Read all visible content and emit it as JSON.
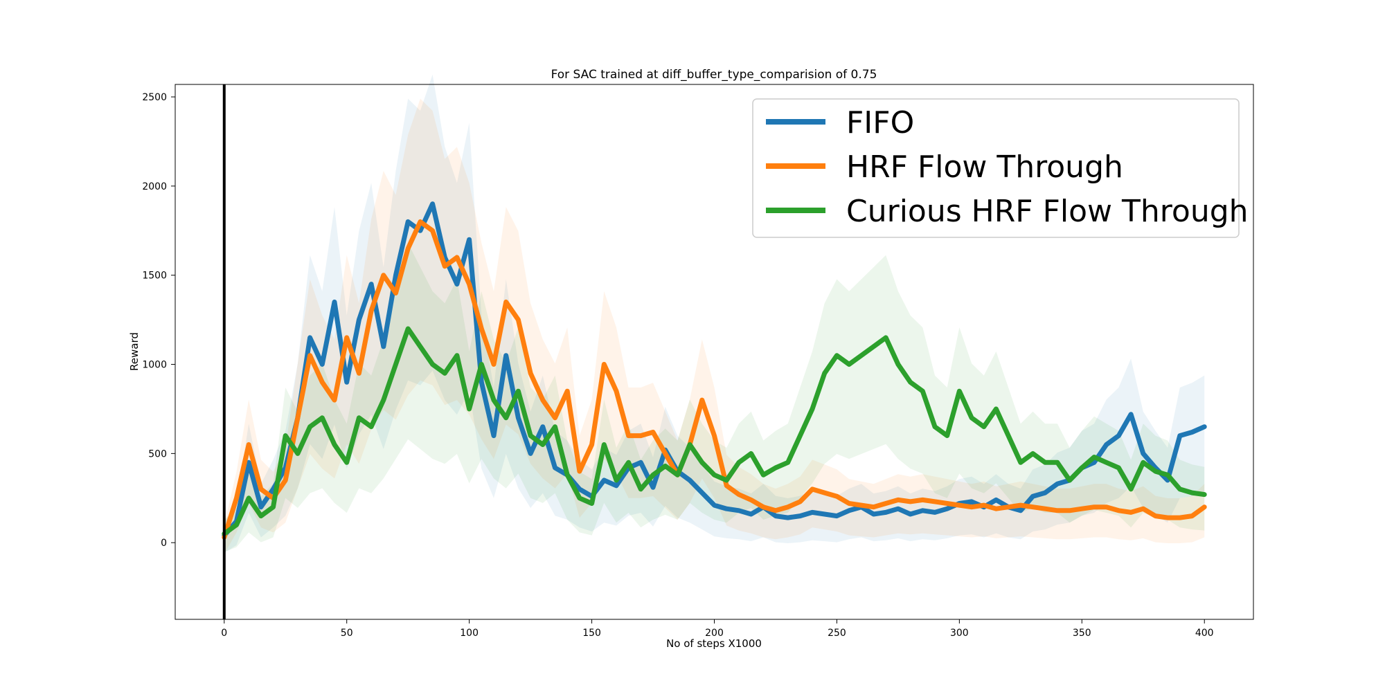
{
  "chart_data": {
    "type": "line",
    "title": "For SAC trained at diff_buffer_type_comparision of 0.75",
    "xlabel": "No of steps X1000",
    "ylabel": "Reward",
    "xlim": [
      -20,
      420
    ],
    "ylim": [
      -430,
      2570
    ],
    "xticks": [
      0,
      50,
      100,
      150,
      200,
      250,
      300,
      350,
      400
    ],
    "yticks": [
      0,
      500,
      1000,
      1500,
      2000,
      2500
    ],
    "vline_x": 0,
    "legend_position": "top-right",
    "grid": false,
    "series": [
      {
        "name": "FIFO",
        "color": "#1f77b4",
        "x": [
          0,
          5,
          10,
          15,
          20,
          25,
          30,
          35,
          40,
          45,
          50,
          55,
          60,
          65,
          70,
          75,
          80,
          85,
          90,
          95,
          100,
          105,
          110,
          115,
          120,
          125,
          130,
          135,
          140,
          145,
          150,
          155,
          160,
          165,
          170,
          175,
          180,
          185,
          190,
          195,
          200,
          205,
          210,
          215,
          220,
          225,
          230,
          235,
          240,
          245,
          250,
          255,
          260,
          265,
          270,
          275,
          280,
          285,
          290,
          295,
          300,
          305,
          310,
          315,
          320,
          325,
          330,
          335,
          340,
          345,
          350,
          355,
          360,
          365,
          370,
          375,
          380,
          385,
          390,
          395,
          400
        ],
        "values": [
          40,
          120,
          450,
          200,
          300,
          420,
          700,
          1150,
          1000,
          1350,
          900,
          1250,
          1450,
          1100,
          1500,
          1800,
          1750,
          1900,
          1600,
          1450,
          1700,
          900,
          600,
          1050,
          700,
          500,
          650,
          420,
          380,
          300,
          260,
          350,
          320,
          420,
          450,
          310,
          520,
          400,
          350,
          280,
          210,
          190,
          180,
          160,
          200,
          150,
          140,
          150,
          170,
          160,
          150,
          180,
          200,
          160,
          170,
          190,
          160,
          180,
          170,
          190,
          220,
          230,
          200,
          240,
          200,
          180,
          260,
          280,
          330,
          350,
          420,
          450,
          550,
          600,
          720,
          500,
          420,
          350,
          600,
          620,
          650
        ]
      },
      {
        "name": "HRF Flow Through",
        "color": "#ff7f0e",
        "x": [
          0,
          5,
          10,
          15,
          20,
          25,
          30,
          35,
          40,
          45,
          50,
          55,
          60,
          65,
          70,
          75,
          80,
          85,
          90,
          95,
          100,
          105,
          110,
          115,
          120,
          125,
          130,
          135,
          140,
          145,
          150,
          155,
          160,
          165,
          170,
          175,
          180,
          185,
          190,
          195,
          200,
          205,
          210,
          215,
          220,
          225,
          230,
          235,
          240,
          245,
          250,
          255,
          260,
          265,
          270,
          275,
          280,
          285,
          290,
          295,
          300,
          305,
          310,
          315,
          320,
          325,
          330,
          335,
          340,
          345,
          350,
          355,
          360,
          365,
          370,
          375,
          380,
          385,
          390,
          395,
          400
        ],
        "values": [
          30,
          250,
          550,
          300,
          250,
          350,
          700,
          1050,
          900,
          800,
          1150,
          950,
          1300,
          1500,
          1400,
          1650,
          1800,
          1750,
          1550,
          1600,
          1450,
          1200,
          1000,
          1350,
          1250,
          950,
          800,
          700,
          850,
          400,
          550,
          1000,
          850,
          600,
          600,
          620,
          500,
          380,
          550,
          800,
          600,
          320,
          270,
          240,
          200,
          180,
          200,
          230,
          300,
          280,
          260,
          220,
          210,
          200,
          220,
          240,
          230,
          240,
          230,
          220,
          210,
          200,
          210,
          190,
          200,
          210,
          200,
          190,
          180,
          180,
          190,
          200,
          200,
          180,
          170,
          190,
          150,
          140,
          140,
          150,
          200
        ]
      },
      {
        "name": "Curious HRF Flow Through",
        "color": "#2ca02c",
        "x": [
          0,
          5,
          10,
          15,
          20,
          25,
          30,
          35,
          40,
          45,
          50,
          55,
          60,
          65,
          70,
          75,
          80,
          85,
          90,
          95,
          100,
          105,
          110,
          115,
          120,
          125,
          130,
          135,
          140,
          145,
          150,
          155,
          160,
          165,
          170,
          175,
          180,
          185,
          190,
          195,
          200,
          205,
          210,
          215,
          220,
          225,
          230,
          235,
          240,
          245,
          250,
          255,
          260,
          265,
          270,
          275,
          280,
          285,
          290,
          295,
          300,
          305,
          310,
          315,
          320,
          325,
          330,
          335,
          340,
          345,
          350,
          355,
          360,
          365,
          370,
          375,
          380,
          385,
          390,
          395,
          400
        ],
        "values": [
          50,
          100,
          250,
          150,
          200,
          600,
          500,
          650,
          700,
          550,
          450,
          700,
          650,
          800,
          1000,
          1200,
          1100,
          1000,
          950,
          1050,
          750,
          1000,
          800,
          700,
          850,
          600,
          550,
          650,
          380,
          250,
          220,
          550,
          350,
          450,
          300,
          380,
          430,
          380,
          550,
          450,
          380,
          350,
          450,
          500,
          380,
          420,
          450,
          600,
          750,
          950,
          1050,
          1000,
          1050,
          1100,
          1150,
          1000,
          900,
          850,
          650,
          600,
          850,
          700,
          650,
          750,
          600,
          450,
          500,
          450,
          450,
          350,
          420,
          480,
          450,
          420,
          300,
          450,
          400,
          380,
          300,
          280,
          270
        ]
      }
    ]
  },
  "legend": {
    "items": [
      {
        "label": "FIFO",
        "color": "#1f77b4"
      },
      {
        "label": "HRF Flow Through",
        "color": "#ff7f0e"
      },
      {
        "label": "Curious HRF Flow Through",
        "color": "#2ca02c"
      }
    ]
  }
}
